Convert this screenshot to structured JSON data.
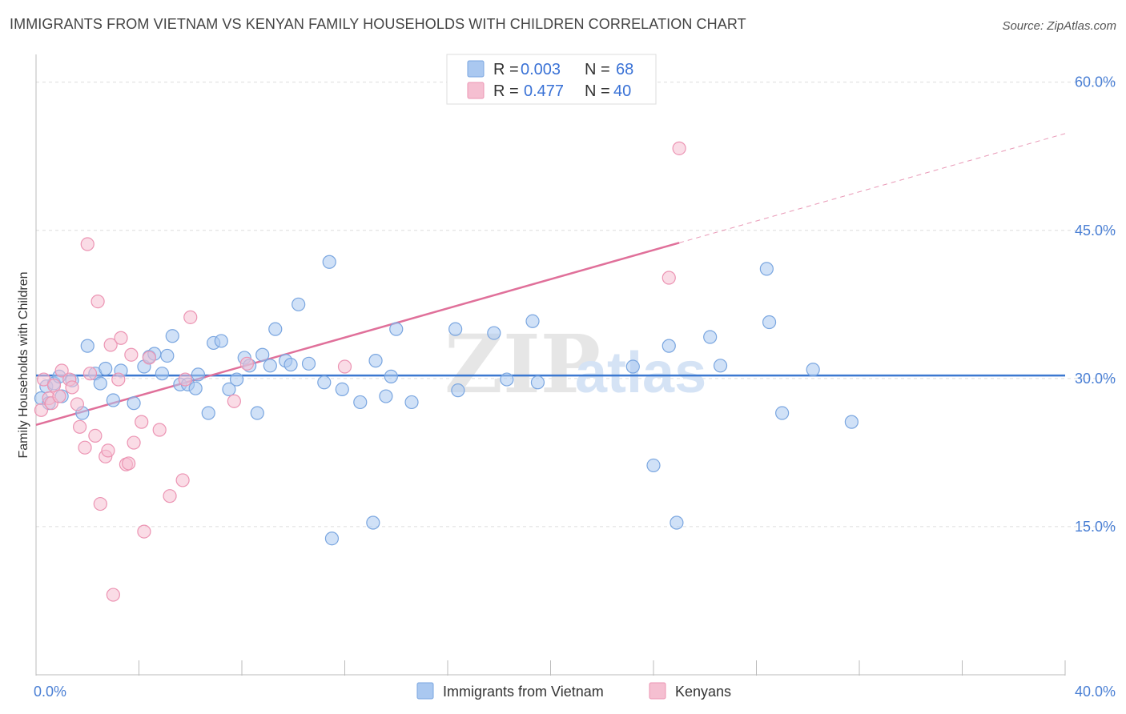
{
  "title": "IMMIGRANTS FROM VIETNAM VS KENYAN FAMILY HOUSEHOLDS WITH CHILDREN CORRELATION CHART",
  "source": "Source: ZipAtlas.com",
  "watermark": {
    "zip": "ZIP",
    "atlas": "atlas"
  },
  "colors": {
    "blue_fill": "#aac8f0",
    "blue_stroke": "#7aa6e0",
    "blue_line": "#3b78d0",
    "pink_fill": "#f5bfd1",
    "pink_stroke": "#ec94b3",
    "pink_line": "#e0709a",
    "grid": "#dddddd",
    "axis_text": "#4a7fd4"
  },
  "legend": {
    "r_label": "R =",
    "n_label": "N =",
    "rows": [
      {
        "r": "0.003",
        "n": "68"
      },
      {
        "r": "0.477",
        "n": "40"
      }
    ]
  },
  "chart_data": {
    "type": "scatter",
    "xlabel": "",
    "ylabel": "Family Households with Children",
    "xlim": [
      0,
      40
    ],
    "ylim": [
      0,
      62
    ],
    "x_tick_labels": [
      {
        "value": 0,
        "label": "0.0%"
      },
      {
        "value": 40,
        "label": "40.0%"
      }
    ],
    "y_tick_labels": [
      {
        "value": 15,
        "label": "15.0%"
      },
      {
        "value": 30,
        "label": "30.0%"
      },
      {
        "value": 45,
        "label": "45.0%"
      },
      {
        "value": 60,
        "label": "60.0%"
      }
    ],
    "series": [
      {
        "name": "Immigrants from Vietnam",
        "color": "#aac8f0",
        "trend": {
          "x0": 0,
          "y0": 30.3,
          "x1": 40,
          "y1": 30.3,
          "dashed_from": 40
        },
        "points": [
          [
            0.2,
            28.0
          ],
          [
            0.4,
            29.2
          ],
          [
            0.5,
            27.5
          ],
          [
            0.7,
            29.5
          ],
          [
            0.9,
            30.2
          ],
          [
            1.0,
            28.2
          ],
          [
            1.4,
            29.8
          ],
          [
            1.8,
            26.5
          ],
          [
            2.0,
            33.3
          ],
          [
            2.3,
            30.5
          ],
          [
            2.5,
            29.5
          ],
          [
            2.7,
            31.0
          ],
          [
            3.0,
            27.8
          ],
          [
            3.3,
            30.8
          ],
          [
            3.8,
            27.5
          ],
          [
            4.2,
            31.2
          ],
          [
            4.4,
            32.2
          ],
          [
            4.6,
            32.5
          ],
          [
            4.9,
            30.5
          ],
          [
            5.1,
            32.3
          ],
          [
            5.3,
            34.3
          ],
          [
            5.6,
            29.4
          ],
          [
            5.9,
            29.4
          ],
          [
            6.2,
            29.0
          ],
          [
            6.3,
            30.4
          ],
          [
            6.7,
            26.5
          ],
          [
            6.9,
            33.6
          ],
          [
            7.2,
            33.8
          ],
          [
            7.5,
            28.9
          ],
          [
            7.8,
            29.9
          ],
          [
            8.1,
            32.1
          ],
          [
            8.3,
            31.3
          ],
          [
            8.6,
            26.5
          ],
          [
            8.8,
            32.4
          ],
          [
            9.1,
            31.3
          ],
          [
            9.3,
            35.0
          ],
          [
            9.7,
            31.8
          ],
          [
            9.9,
            31.4
          ],
          [
            10.2,
            37.5
          ],
          [
            10.6,
            31.5
          ],
          [
            11.2,
            29.6
          ],
          [
            11.4,
            41.8
          ],
          [
            11.5,
            13.8
          ],
          [
            11.9,
            28.9
          ],
          [
            12.6,
            27.6
          ],
          [
            13.1,
            15.4
          ],
          [
            13.2,
            31.8
          ],
          [
            13.6,
            28.2
          ],
          [
            13.8,
            30.2
          ],
          [
            14.0,
            35.0
          ],
          [
            14.6,
            27.6
          ],
          [
            16.3,
            35.0
          ],
          [
            16.4,
            28.8
          ],
          [
            17.8,
            34.6
          ],
          [
            18.3,
            29.9
          ],
          [
            19.3,
            35.8
          ],
          [
            19.5,
            29.6
          ],
          [
            23.2,
            31.2
          ],
          [
            24.0,
            21.2
          ],
          [
            24.6,
            33.3
          ],
          [
            24.9,
            15.4
          ],
          [
            26.2,
            34.2
          ],
          [
            26.6,
            31.3
          ],
          [
            28.4,
            41.1
          ],
          [
            28.5,
            35.7
          ],
          [
            29.0,
            26.5
          ],
          [
            30.2,
            30.9
          ],
          [
            31.7,
            25.6
          ]
        ]
      },
      {
        "name": "Kenyans",
        "color": "#f5bfd1",
        "trend": {
          "x0": 0,
          "y0": 25.3,
          "x1": 40,
          "y1": 54.8,
          "dashed_from": 25.0
        },
        "points": [
          [
            0.2,
            26.8
          ],
          [
            0.3,
            29.9
          ],
          [
            0.5,
            28.0
          ],
          [
            0.6,
            27.5
          ],
          [
            0.7,
            29.3
          ],
          [
            0.9,
            28.2
          ],
          [
            1.0,
            30.8
          ],
          [
            1.3,
            29.9
          ],
          [
            1.4,
            29.1
          ],
          [
            1.6,
            27.4
          ],
          [
            1.7,
            25.1
          ],
          [
            1.9,
            23.0
          ],
          [
            2.0,
            43.6
          ],
          [
            2.1,
            30.5
          ],
          [
            2.3,
            24.2
          ],
          [
            2.4,
            37.8
          ],
          [
            2.5,
            17.3
          ],
          [
            2.7,
            22.1
          ],
          [
            2.8,
            22.7
          ],
          [
            2.9,
            33.4
          ],
          [
            3.0,
            8.1
          ],
          [
            3.2,
            29.9
          ],
          [
            3.3,
            34.1
          ],
          [
            3.5,
            21.3
          ],
          [
            3.6,
            21.4
          ],
          [
            3.7,
            32.4
          ],
          [
            3.8,
            23.5
          ],
          [
            4.1,
            25.6
          ],
          [
            4.2,
            14.5
          ],
          [
            4.4,
            32.1
          ],
          [
            4.8,
            24.8
          ],
          [
            5.2,
            18.1
          ],
          [
            5.7,
            19.7
          ],
          [
            5.8,
            29.9
          ],
          [
            6.0,
            36.2
          ],
          [
            7.7,
            27.7
          ],
          [
            8.2,
            31.5
          ],
          [
            12.0,
            31.2
          ],
          [
            24.6,
            40.2
          ],
          [
            25.0,
            53.3
          ]
        ]
      }
    ]
  },
  "bottom_legend": [
    {
      "label": "Immigrants from Vietnam"
    },
    {
      "label": "Kenyans"
    }
  ]
}
